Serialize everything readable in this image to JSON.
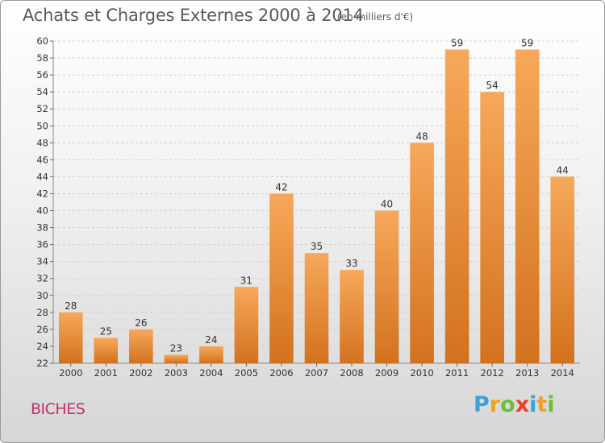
{
  "chart_data": {
    "type": "bar",
    "title": "Achats et Charges Externes 2000 à 2014",
    "subtitle": "(en milliers d'€)",
    "categories": [
      "2000",
      "2001",
      "2002",
      "2003",
      "2004",
      "2005",
      "2006",
      "2007",
      "2008",
      "2009",
      "2010",
      "2011",
      "2012",
      "2013",
      "2014"
    ],
    "values": [
      28,
      25,
      26,
      23,
      24,
      31,
      42,
      35,
      33,
      40,
      48,
      59,
      54,
      59,
      44
    ],
    "ylim": [
      22,
      60
    ],
    "yticks": [
      22,
      24,
      26,
      28,
      30,
      32,
      34,
      36,
      38,
      40,
      42,
      44,
      46,
      48,
      50,
      52,
      54,
      56,
      58,
      60
    ],
    "grid": true,
    "bar_color_light": "#f7a85a",
    "bar_color_dark": "#d2721f"
  },
  "commune": "BICHES",
  "logo": {
    "letters": [
      "P",
      "r",
      "o",
      "x",
      "i",
      "t",
      "i"
    ],
    "colors": [
      "#3aa0d8",
      "#f0a020",
      "#6cbf3a",
      "#e8402a",
      "#3aa0d8",
      "#f0a020",
      "#6cbf3a"
    ]
  }
}
